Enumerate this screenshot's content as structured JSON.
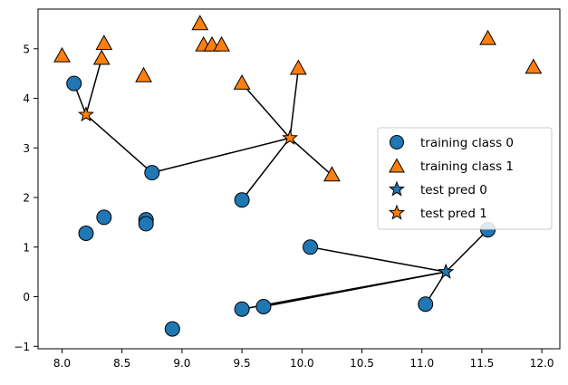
{
  "chart_data": {
    "type": "scatter",
    "title": "",
    "xlabel": "",
    "ylabel": "",
    "xlim": [
      7.8,
      12.15
    ],
    "ylim": [
      -1.05,
      5.8
    ],
    "xticks": [
      8.0,
      8.5,
      9.0,
      9.5,
      10.0,
      10.5,
      11.0,
      11.5,
      12.0
    ],
    "xtick_labels": [
      "8.0",
      "8.5",
      "9.0",
      "9.5",
      "10.0",
      "10.5",
      "11.0",
      "11.5",
      "12.0"
    ],
    "yticks": [
      -1,
      0,
      1,
      2,
      3,
      4,
      5
    ],
    "ytick_labels": [
      "−1",
      "0",
      "1",
      "2",
      "3",
      "4",
      "5"
    ],
    "grid": false,
    "legend_position": "center-right",
    "colors": {
      "class0": "#1f77b4",
      "class1": "#ff7f0e",
      "edge": "#000000",
      "line": "#000000"
    },
    "series": [
      {
        "name": "training class 0",
        "marker": "circle",
        "color": "#1f77b4",
        "points": [
          [
            8.1,
            4.3
          ],
          [
            8.75,
            2.5
          ],
          [
            9.5,
            1.95
          ],
          [
            8.35,
            1.6
          ],
          [
            8.2,
            1.28
          ],
          [
            8.7,
            1.55
          ],
          [
            8.7,
            1.47
          ],
          [
            8.92,
            -0.65
          ],
          [
            9.5,
            -0.25
          ],
          [
            9.68,
            -0.2
          ],
          [
            10.07,
            1.0
          ],
          [
            11.55,
            1.35
          ],
          [
            11.03,
            -0.15
          ]
        ]
      },
      {
        "name": "training class 1",
        "marker": "triangle",
        "color": "#ff7f0e",
        "points": [
          [
            8.0,
            4.85
          ],
          [
            8.33,
            4.8
          ],
          [
            8.35,
            5.1
          ],
          [
            8.68,
            4.45
          ],
          [
            9.15,
            5.5
          ],
          [
            9.18,
            5.07
          ],
          [
            9.25,
            5.07
          ],
          [
            9.33,
            5.07
          ],
          [
            9.5,
            4.3
          ],
          [
            9.97,
            4.6
          ],
          [
            10.25,
            2.45
          ],
          [
            11.55,
            5.2
          ],
          [
            11.93,
            4.62
          ]
        ]
      },
      {
        "name": "test pred 0",
        "marker": "star",
        "color": "#1f77b4",
        "points": [
          [
            11.2,
            0.5
          ]
        ]
      },
      {
        "name": "test pred 1",
        "marker": "star",
        "color": "#ff7f0e",
        "points": [
          [
            8.2,
            3.67
          ],
          [
            9.9,
            3.2
          ]
        ]
      }
    ],
    "neighbor_links": [
      {
        "from": [
          8.2,
          3.67
        ],
        "to": [
          [
            8.1,
            4.3
          ],
          [
            8.33,
            4.8
          ],
          [
            8.75,
            2.5
          ]
        ]
      },
      {
        "from": [
          9.9,
          3.2
        ],
        "to": [
          [
            8.75,
            2.5
          ],
          [
            9.5,
            4.3
          ],
          [
            9.97,
            4.6
          ],
          [
            10.25,
            2.45
          ],
          [
            9.5,
            1.95
          ]
        ]
      },
      {
        "from": [
          11.2,
          0.5
        ],
        "to": [
          [
            10.07,
            1.0
          ],
          [
            11.55,
            1.35
          ],
          [
            11.03,
            -0.15
          ],
          [
            9.68,
            -0.2
          ],
          [
            9.5,
            -0.25
          ]
        ]
      }
    ],
    "legend": [
      "training class 0",
      "training class 1",
      "test pred 0",
      "test pred 1"
    ]
  }
}
